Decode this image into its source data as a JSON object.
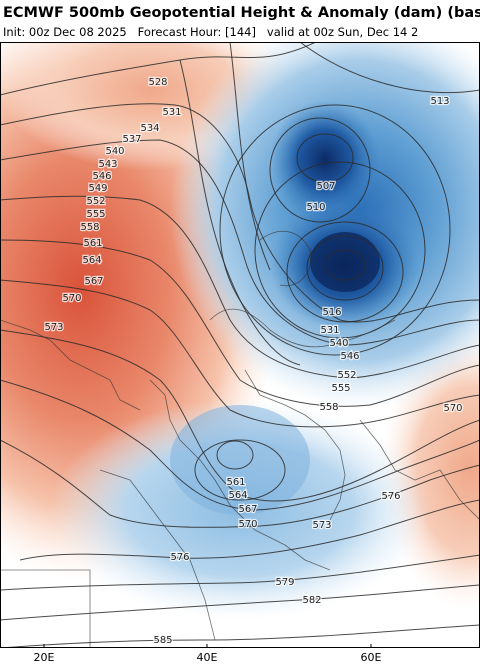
{
  "header": {
    "title": "ECMWF 500mb Geopotential Height & Anomaly (dam) (base",
    "subtitle": "Init: 00z Dec 08 2025   Forecast Hour: [144]   valid at 00z Sun, Dec 14 2"
  },
  "map": {
    "contour_labels": [
      "528",
      "531",
      "534",
      "537",
      "540",
      "543",
      "546",
      "549",
      "552",
      "555",
      "558",
      "561",
      "564",
      "567",
      "570",
      "573",
      "513",
      "507",
      "510",
      "516",
      "531",
      "540",
      "546",
      "552",
      "555",
      "558",
      "561",
      "564",
      "567",
      "570",
      "573",
      "576",
      "576",
      "579",
      "582",
      "585",
      "570"
    ],
    "longitude_labels": [
      "20E",
      "40E",
      "60E"
    ]
  }
}
